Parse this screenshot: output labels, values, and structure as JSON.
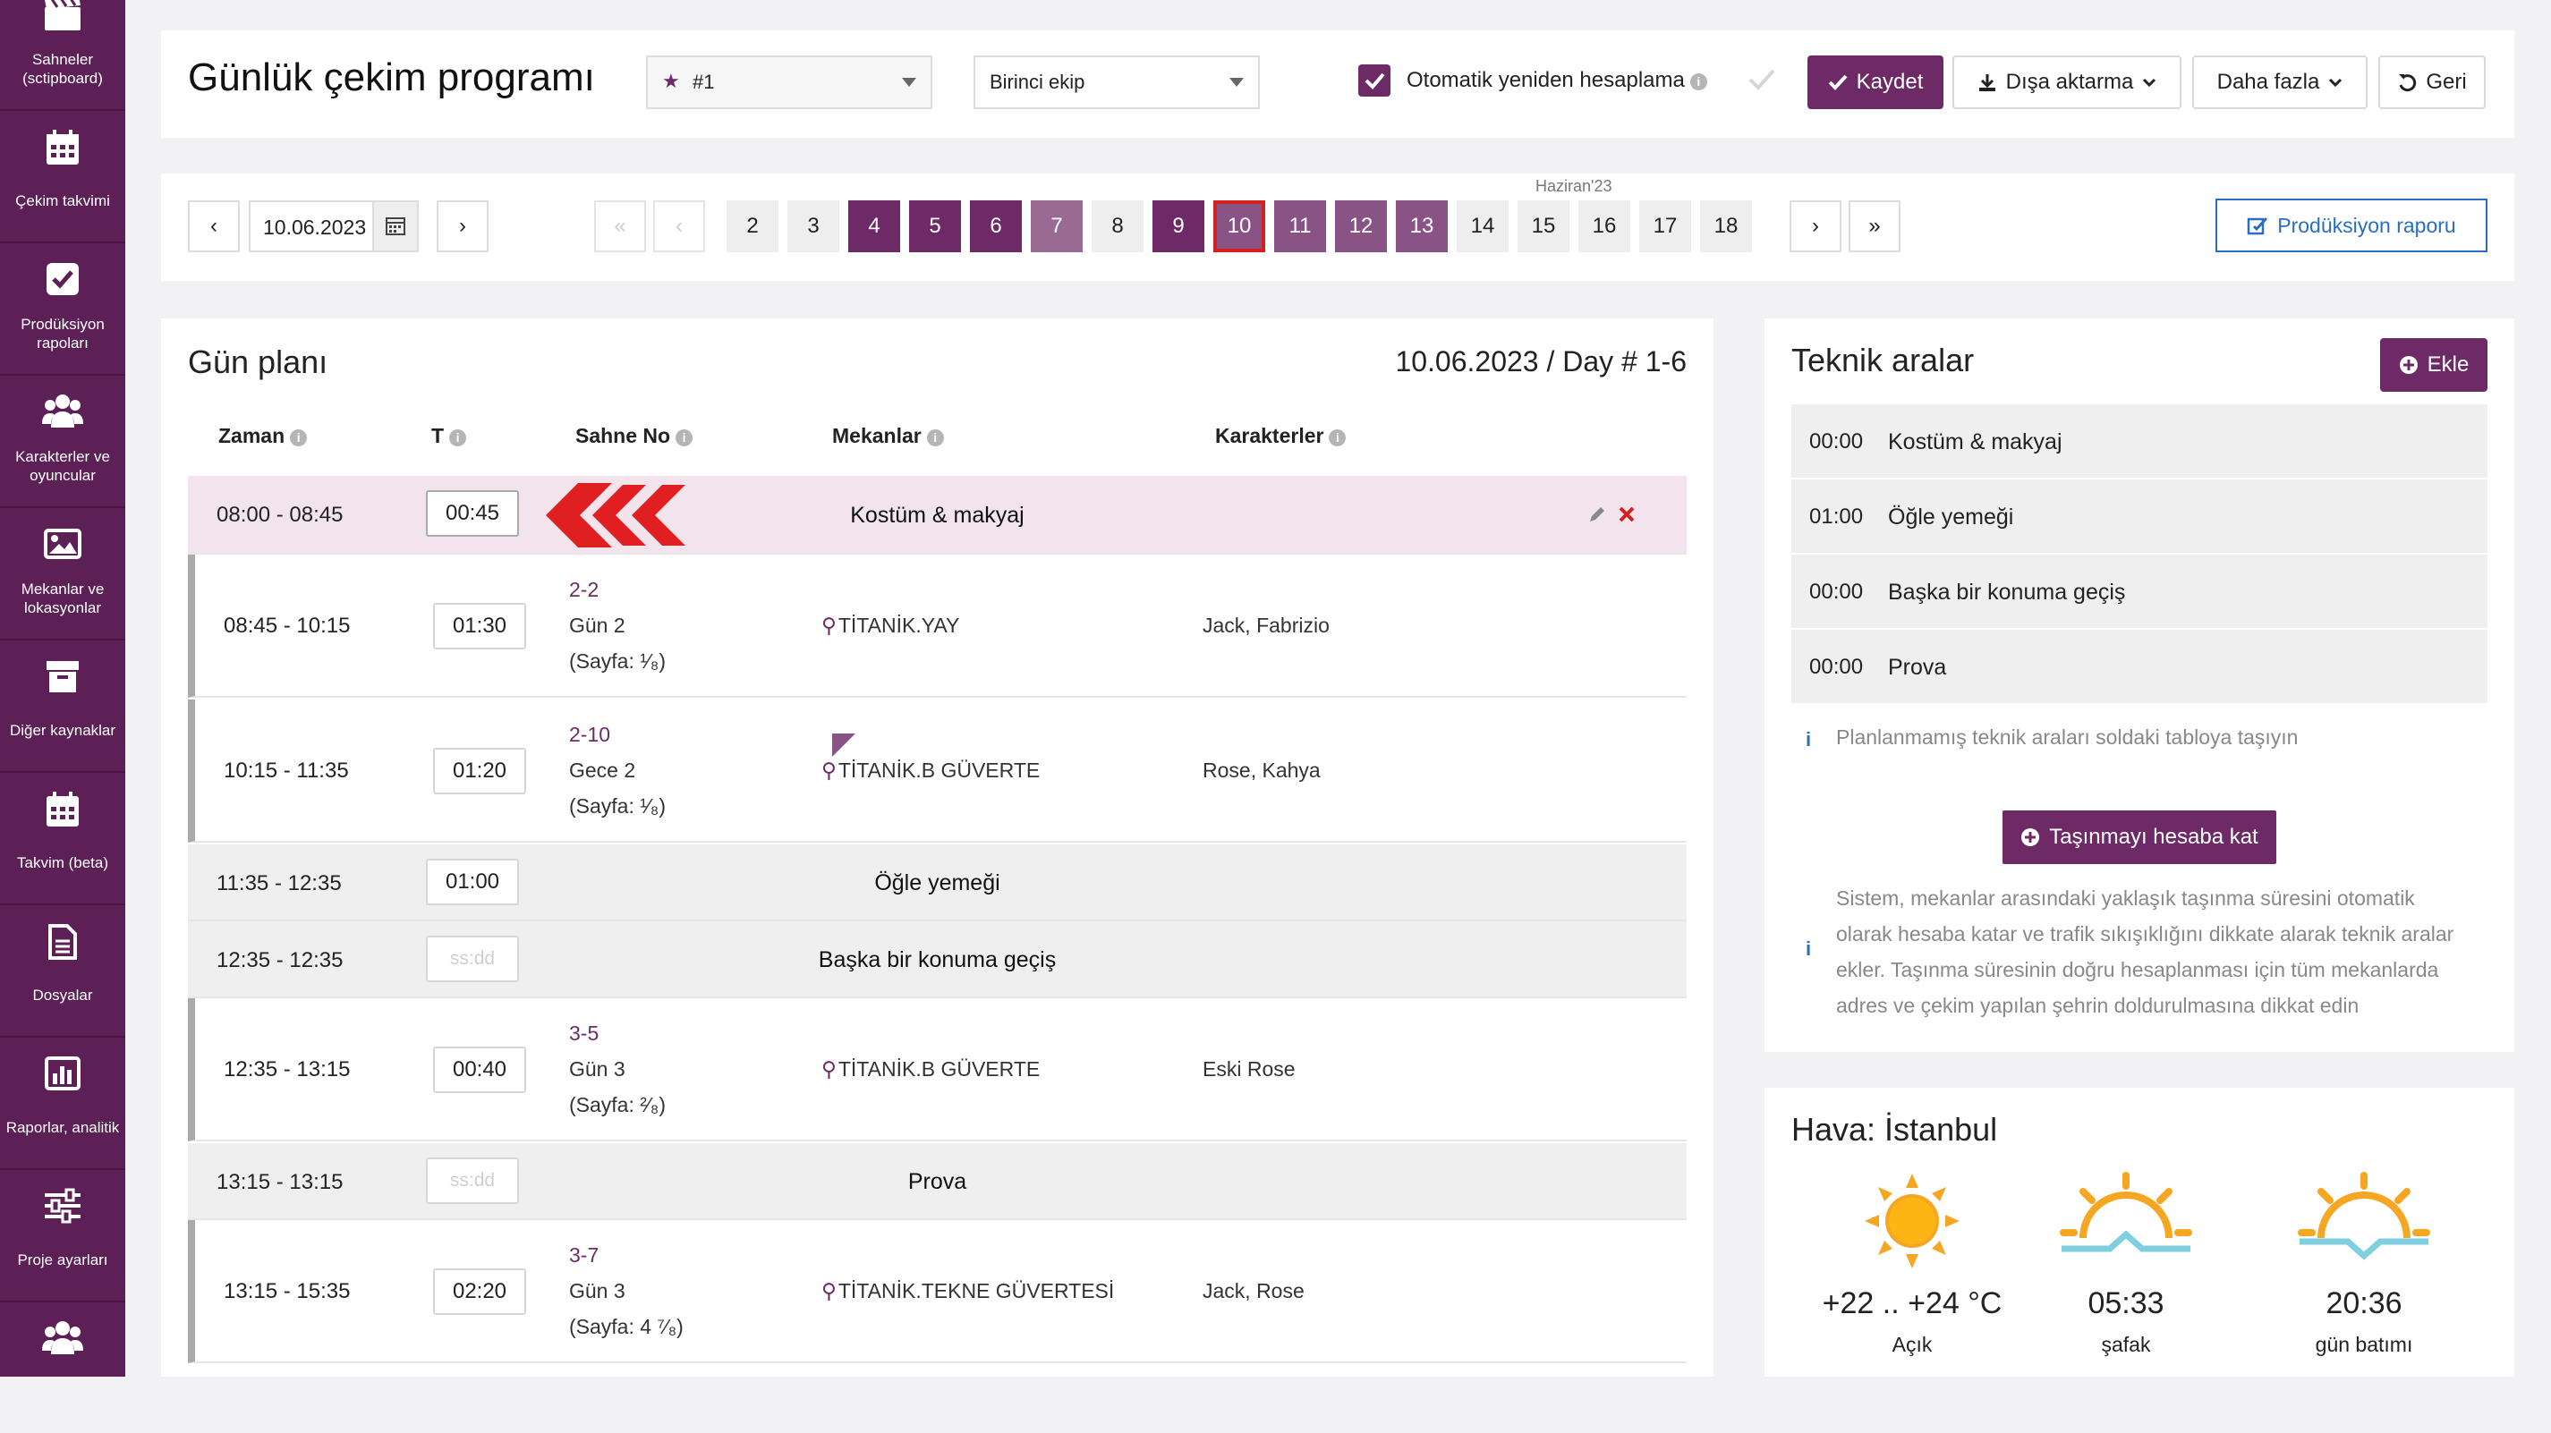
{
  "sidebar": {
    "items": [
      {
        "label": "Sahneler (sctipboard)",
        "icon": "clapperboard-icon"
      },
      {
        "label": "Çekim takvimi",
        "icon": "calendar-icon"
      },
      {
        "label": "Prodüksiyon rapoları",
        "icon": "checkbox-icon"
      },
      {
        "label": "Karakterler ve oyuncular",
        "icon": "users-icon"
      },
      {
        "label": "Mekanlar ve lokasyonlar",
        "icon": "image-icon"
      },
      {
        "label": "Diğer kaynaklar",
        "icon": "archive-icon"
      },
      {
        "label": "Takvim (beta)",
        "icon": "calendar-icon"
      },
      {
        "label": "Dosyalar",
        "icon": "file-icon"
      },
      {
        "label": "Raporlar, analitik",
        "icon": "bar-chart-icon"
      },
      {
        "label": "Proje ayarları",
        "icon": "sliders-icon"
      },
      {
        "label": "",
        "icon": "users-icon"
      }
    ]
  },
  "header": {
    "title": "Günlük çekim programı",
    "schedule_select": "#1",
    "team_select": "Birinci ekip",
    "auto_recalc_label": "Otomatik yeniden hesaplama",
    "save_label": "Kaydet",
    "export_label": "Dışa aktarma",
    "more_label": "Daha fazla",
    "back_label": "Geri"
  },
  "datebar": {
    "date": "10.06.2023",
    "month_label": "Haziran'23",
    "days": [
      {
        "n": "2",
        "style": "plain"
      },
      {
        "n": "3",
        "style": "plain"
      },
      {
        "n": "4",
        "style": "dark"
      },
      {
        "n": "5",
        "style": "dark"
      },
      {
        "n": "6",
        "style": "dark"
      },
      {
        "n": "7",
        "style": "light"
      },
      {
        "n": "8",
        "style": "plain"
      },
      {
        "n": "9",
        "style": "dark"
      },
      {
        "n": "10",
        "style": "current"
      },
      {
        "n": "11",
        "style": "mid"
      },
      {
        "n": "12",
        "style": "mid"
      },
      {
        "n": "13",
        "style": "mid"
      },
      {
        "n": "14",
        "style": "plain"
      },
      {
        "n": "15",
        "style": "plain"
      },
      {
        "n": "16",
        "style": "plain"
      },
      {
        "n": "17",
        "style": "plain"
      },
      {
        "n": "18",
        "style": "plain"
      }
    ],
    "report_label": "Prodüksiyon raporu"
  },
  "plan": {
    "title": "Gün planı",
    "day_info": "10.06.2023 / Day # 1-6",
    "columns": {
      "time": "Zaman",
      "t": "T",
      "scene": "Sahne No",
      "locations": "Mekanlar",
      "characters": "Karakterler"
    },
    "rows": [
      {
        "type": "tech",
        "time": "08:00 - 08:45",
        "duration": "00:45",
        "label": "Kostüm & makyaj"
      },
      {
        "type": "scene",
        "time": "08:45 - 10:15",
        "duration": "01:30",
        "scene": "2-2",
        "day": "Gün 2",
        "page_prefix": "(Sayfa: ",
        "page": "¹⁄₈",
        "page_suffix": ")",
        "location": "TİTANİK.YAY",
        "characters": "Jack, Fabrizio"
      },
      {
        "type": "scene",
        "time": "10:15 - 11:35",
        "duration": "01:20",
        "scene": "2-10",
        "day": "Gece 2",
        "page_prefix": "(Sayfa: ",
        "page": "¹⁄₈",
        "page_suffix": ")",
        "location": "TİTANİK.B GÜVERTE",
        "characters": "Rose, Kahya"
      },
      {
        "type": "tech",
        "time": "11:35 - 12:35",
        "duration": "01:00",
        "label": "Öğle yemeği"
      },
      {
        "type": "tech",
        "time": "12:35 - 12:35",
        "duration_placeholder": "ss:dd",
        "label": "Başka bir konuma geçiş"
      },
      {
        "type": "scene",
        "time": "12:35 - 13:15",
        "duration": "00:40",
        "scene": "3-5",
        "day": "Gün 3",
        "page_prefix": "(Sayfa: ",
        "page": "²⁄₈",
        "page_suffix": ")",
        "location": "TİTANİK.B GÜVERTE",
        "characters": "Eski Rose"
      },
      {
        "type": "tech",
        "time": "13:15 - 13:15",
        "duration_placeholder": "ss:dd",
        "label": "Prova"
      },
      {
        "type": "scene",
        "time": "13:15 - 15:35",
        "duration": "02:20",
        "scene": "3-7",
        "day": "Gün 3",
        "page_prefix": "(Sayfa: ",
        "page": "4 ⁷⁄₈",
        "page_suffix": ")",
        "location": "TİTANİK.TEKNE GÜVERTESİ",
        "characters": "Jack, Rose"
      }
    ]
  },
  "tech": {
    "title": "Teknik aralar",
    "add_label": "Ekle",
    "items": [
      {
        "time": "00:00",
        "name": "Kostüm & makyaj"
      },
      {
        "time": "01:00",
        "name": "Öğle yemeği"
      },
      {
        "time": "00:00",
        "name": "Başka bir konuma geçiş"
      },
      {
        "time": "00:00",
        "name": "Prova"
      }
    ],
    "hint": "Planlanmamış teknik araları soldaki tabloya taşıyın",
    "account_label": "Taşınmayı hesaba kat",
    "note_lines": [
      "Sistem, mekanlar arasındaki yaklaşık taşınma süresini otomatik",
      "olarak hesaba katar ve trafik sıkışıklığını dikkate alarak teknik aralar",
      "ekler. Taşınma süresinin doğru hesaplanması için tüm mekanlarda",
      "adres ve çekim yapılan şehrin doldurulmasına dikkat edin"
    ]
  },
  "weather": {
    "title": "Hava: İstanbul",
    "temp": "+22 .. +24 °C",
    "condition": "Açık",
    "sunrise": "05:33",
    "sunrise_label": "şafak",
    "sunset": "20:36",
    "sunset_label": "gün batımı"
  },
  "colors": {
    "accent": "#6d2a67",
    "sidebar": "#5c1f56",
    "highlight_row": "#f2e3ec",
    "arrow": "#e02020",
    "sun": "#f5a623"
  }
}
